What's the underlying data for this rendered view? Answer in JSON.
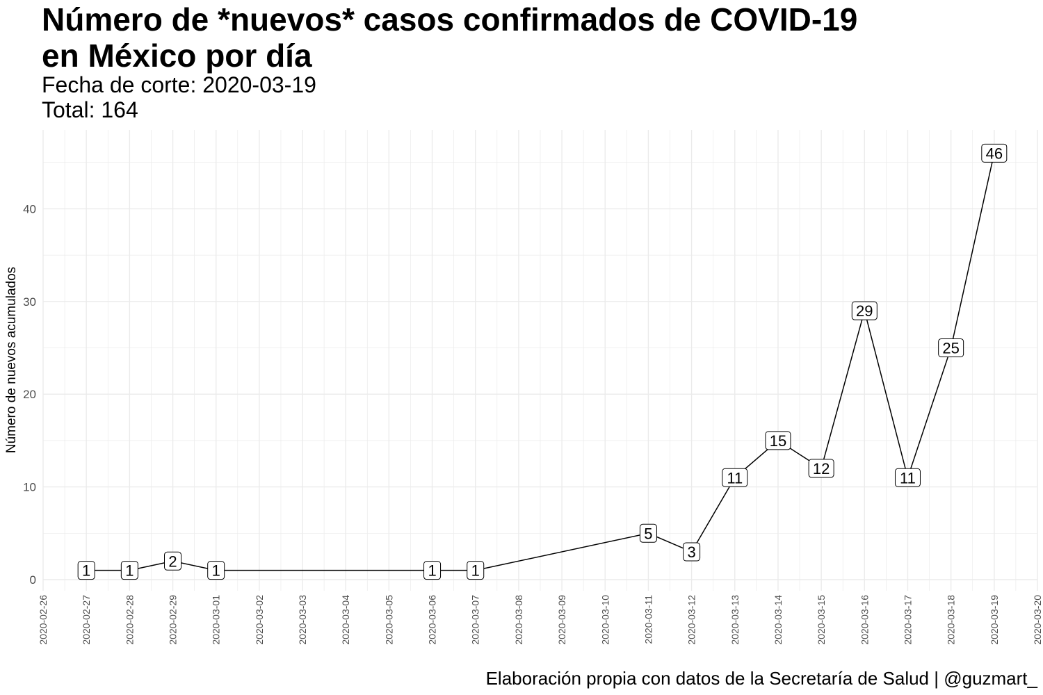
{
  "chart_data": {
    "type": "line",
    "title": "Número de *nuevos* casos confirmados de COVID-19\nen México por día",
    "subtitle": "Fecha de corte: 2020-03-19\nTotal: 164",
    "caption": "Elaboración propia con datos de la Secretaría de Salud | @guzmart_",
    "xlabel": "",
    "ylabel": "Número de nuevos acumulados",
    "x_ticks": [
      "2020-02-26",
      "2020-02-27",
      "2020-02-28",
      "2020-02-29",
      "2020-03-01",
      "2020-03-02",
      "2020-03-03",
      "2020-03-04",
      "2020-03-05",
      "2020-03-06",
      "2020-03-07",
      "2020-03-08",
      "2020-03-09",
      "2020-03-10",
      "2020-03-11",
      "2020-03-12",
      "2020-03-13",
      "2020-03-14",
      "2020-03-15",
      "2020-03-16",
      "2020-03-17",
      "2020-03-18",
      "2020-03-19",
      "2020-03-20"
    ],
    "y_ticks": [
      0,
      10,
      20,
      30,
      40
    ],
    "ylim": [
      -1.2,
      48.5
    ],
    "grid": true,
    "legend": "none",
    "line_color": "#000000",
    "grid_color": "#ebebeb",
    "points": [
      {
        "x": "2020-02-27",
        "y": 1
      },
      {
        "x": "2020-02-28",
        "y": 1
      },
      {
        "x": "2020-02-29",
        "y": 2
      },
      {
        "x": "2020-03-01",
        "y": 1
      },
      {
        "x": "2020-03-06",
        "y": 1
      },
      {
        "x": "2020-03-07",
        "y": 1
      },
      {
        "x": "2020-03-11",
        "y": 5
      },
      {
        "x": "2020-03-12",
        "y": 3
      },
      {
        "x": "2020-03-13",
        "y": 11
      },
      {
        "x": "2020-03-14",
        "y": 15
      },
      {
        "x": "2020-03-15",
        "y": 12
      },
      {
        "x": "2020-03-16",
        "y": 29
      },
      {
        "x": "2020-03-17",
        "y": 11
      },
      {
        "x": "2020-03-18",
        "y": 25
      },
      {
        "x": "2020-03-19",
        "y": 46
      }
    ]
  }
}
